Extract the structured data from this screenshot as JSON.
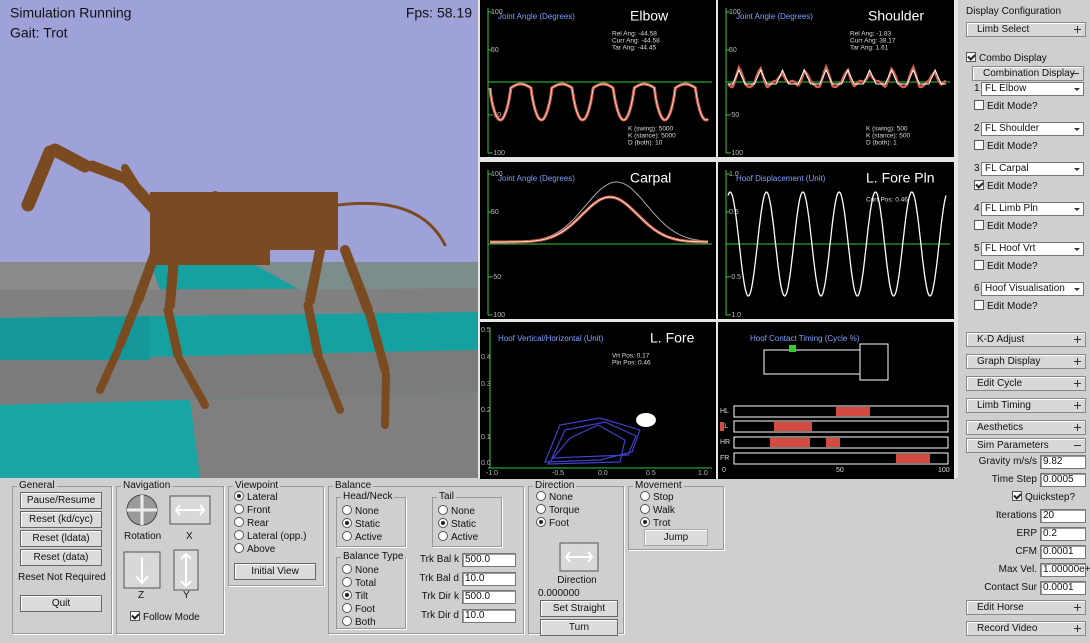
{
  "viewport": {
    "status": "Simulation Running",
    "gait": "Gait: Trot",
    "fps": "Fps: 58.19"
  },
  "graphs": [
    {
      "title": "Joint Angle (Degrees)",
      "name": "Elbow",
      "yticks": [
        "100",
        "50",
        "-50",
        "-100"
      ],
      "info_top": [
        "Rel Ang: -44.58",
        "Curr Ang: -44.58",
        "Tar Ang: -44.45"
      ],
      "info_bottom": [
        "K (swing): 5000",
        "K (stance): 5000",
        "D (both): 10"
      ]
    },
    {
      "title": "Joint Angle (Degrees)",
      "name": "Shoulder",
      "yticks": [
        "100",
        "50",
        "-50",
        "-100"
      ],
      "info_top": [
        "Rel Ang: -1.83",
        "Curr Ang: 38.17",
        "Tar Ang: 1.61"
      ],
      "info_bottom": [
        "K (swing): 500",
        "K (stance): 500",
        "D (both): 1"
      ]
    },
    {
      "title": "Joint Angle (Degrees)",
      "name": "Carpal",
      "yticks": [
        "100",
        "50",
        "-50",
        "-100"
      ]
    },
    {
      "title": "Hoof Displacement (Unit)",
      "name": "L. Fore Pln",
      "yticks": [
        "1.0",
        "0.5",
        "-0.5",
        "-1.0"
      ],
      "info_top": [
        "Curr Pos: 0.46"
      ]
    },
    {
      "title": "Hoof Vertical/Horizontal (Unit)",
      "name": "L. Fore",
      "yticks": [
        "0.5",
        "0.4",
        "0.3",
        "0.2",
        "0.1",
        "0.0"
      ],
      "xticks": [
        "-1.0",
        "-0.5",
        "0.0",
        "0.5",
        "1.0"
      ],
      "info_top": [
        "Vrt Pos: 0.17",
        "Pln Pos: 0.46"
      ]
    },
    {
      "title": "Hoof Contact Timing (Cycle %)",
      "rows": [
        "HL",
        "FL",
        "HR",
        "FR"
      ],
      "xticks": [
        "0",
        "50",
        "100"
      ]
    }
  ],
  "config": {
    "title": "Display Configuration",
    "limb_select": "Limb Select",
    "combo_display": {
      "label": "Combo Display",
      "checked": true
    },
    "combination_display": "Combination Display",
    "slots": [
      {
        "number": "1",
        "value": "FL Elbow",
        "edit": "Edit Mode?",
        "checked": false
      },
      {
        "number": "2",
        "value": "FL Shoulder",
        "edit": "Edit Mode?",
        "checked": false
      },
      {
        "number": "3",
        "value": "FL Carpal",
        "edit": "Edit Mode?",
        "checked": true
      },
      {
        "number": "4",
        "value": "FL Limb Pln",
        "edit": "Edit Mode?",
        "checked": false
      },
      {
        "number": "5",
        "value": "FL Hoof Vrt",
        "edit": "Edit Mode?",
        "checked": false
      },
      {
        "number": "6",
        "value": "Hoof Visualisation",
        "edit": "Edit Mode?",
        "checked": false
      }
    ],
    "sections": [
      "K-D Adjust",
      "Graph Display",
      "Edit Cycle",
      "Limb Timing",
      "Aesthetics"
    ],
    "sim_parameters": {
      "title": "Sim Parameters",
      "fields": [
        {
          "label": "Gravity m/s/s",
          "value": "9.82"
        },
        {
          "label": "Time Step",
          "value": "0.0005"
        },
        {
          "label": "Iterations",
          "value": "20"
        },
        {
          "label": "ERP",
          "value": "0.2"
        },
        {
          "label": "CFM",
          "value": "0.0001"
        },
        {
          "label": "Max Vel.",
          "value": "1.00000e+"
        },
        {
          "label": "Contact Sur",
          "value": "0.0001"
        }
      ],
      "quickstep": {
        "label": "Quickstep?",
        "checked": true
      }
    },
    "disabled": [
      "Edit Horse",
      "Record Video"
    ]
  },
  "controls": {
    "general": {
      "legend": "General",
      "buttons": [
        "Pause/Resume",
        "Reset (kd/cyc)",
        "Reset (ldata)",
        "Reset (data)"
      ],
      "status": "Reset Not Required",
      "quit": "Quit"
    },
    "navigation": {
      "legend": "Navigation",
      "rotation": "Rotation",
      "x": "X",
      "z": "Z",
      "y": "Y",
      "follow": {
        "label": "Follow Mode",
        "checked": true
      }
    },
    "viewpoint": {
      "legend": "Viewpoint",
      "options": [
        "Lateral",
        "Front",
        "Rear",
        "Lateral (opp.)",
        "Above"
      ],
      "selected": 0,
      "button": "Initial View"
    },
    "balance": {
      "legend": "Balance",
      "head_neck": {
        "legend": "Head/Neck",
        "options": [
          "None",
          "Static",
          "Active"
        ],
        "selected": 1
      },
      "tail": {
        "legend": "Tail",
        "options": [
          "None",
          "Static",
          "Active"
        ],
        "selected": 1
      },
      "balance_type": {
        "legend": "Balance Type",
        "options": [
          "None",
          "Total",
          "Tilt",
          "Foot",
          "Both"
        ],
        "selected": 2
      },
      "fields": [
        {
          "label": "Trk Bal k",
          "value": "500.0"
        },
        {
          "label": "Trk Bal d",
          "value": "10.0"
        },
        {
          "label": "Trk Dir k",
          "value": "500.0"
        },
        {
          "label": "Trk Dir d",
          "value": "10.0"
        }
      ]
    },
    "direction": {
      "legend": "Direction",
      "options": [
        "None",
        "Torque",
        "Foot"
      ],
      "selected": 2,
      "label": "Direction",
      "value": "0.000000",
      "buttons": [
        "Set Straight",
        "Turn"
      ]
    },
    "movement": {
      "legend": "Movement",
      "options": [
        "Stop",
        "Walk",
        "Trot"
      ],
      "selected": 2,
      "button": "Jump"
    }
  }
}
